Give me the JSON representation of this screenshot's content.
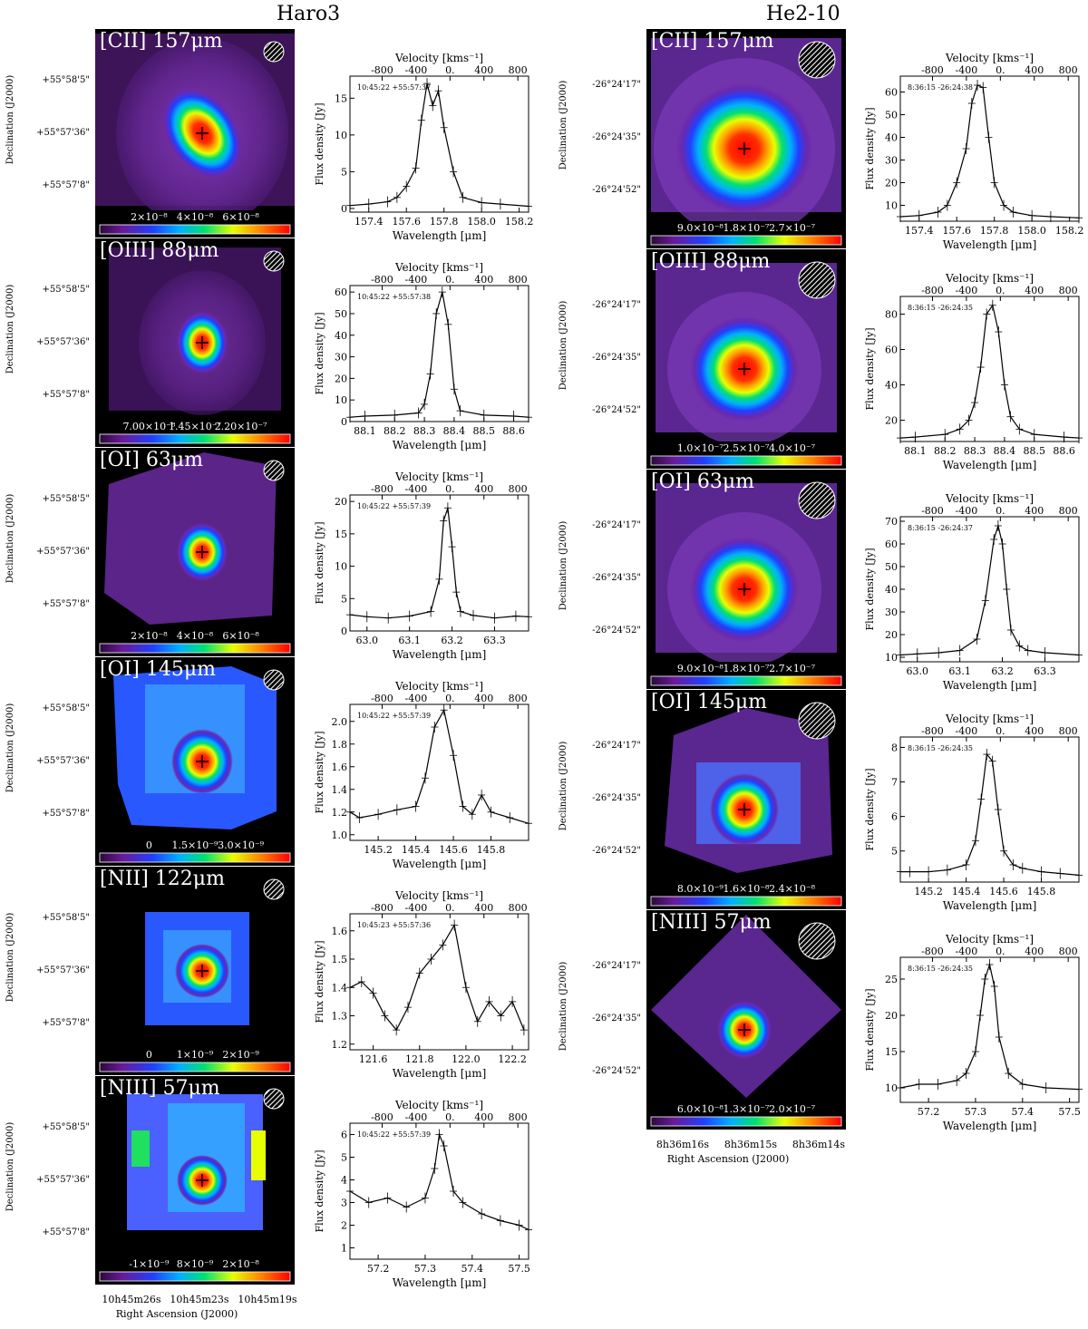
{
  "headers": {
    "left": "Haro3",
    "right": "He2-10"
  },
  "common": {
    "declination_label": "Declination (J2000)",
    "ra_label": "Right Ascension (J2000)",
    "wavelength_label": "Wavelength [μm]",
    "velocity_label": "Velocity [kms⁻¹]",
    "flux_label": "Flux density [Jy]",
    "velocity_ticks": [
      "-800",
      "-400",
      "0.",
      "400",
      "800"
    ]
  },
  "haro3": {
    "dec_ticks": [
      "+55°58'5\"",
      "+55°57'36\"",
      "+55°57'8\""
    ],
    "ra_ticks": [
      "10h45m26s",
      "10h45m23s",
      "10h45m19s"
    ],
    "panels": [
      {
        "line": "[CII] 157μm",
        "cbar_ticks": [
          "2×10⁻⁸",
          "4×10⁻⁸",
          "6×10⁻⁸"
        ],
        "map_style": "ellipse-smooth",
        "spectrum": {
          "coords": "10:45:22 +55:57:37",
          "x": [
            157.3,
            157.4,
            157.5,
            157.55,
            157.6,
            157.65,
            157.68,
            157.71,
            157.74,
            157.77,
            157.8,
            157.85,
            157.9,
            158.0,
            158.1,
            158.25
          ],
          "y": [
            0.4,
            0.6,
            0.9,
            1.5,
            3,
            5.5,
            12,
            17,
            14,
            16,
            11,
            5,
            1.5,
            0.8,
            0.6,
            0.3
          ],
          "xticks": [
            "157.4",
            "157.6",
            "157.8",
            "158.0",
            "158.2"
          ],
          "xtick_vals": [
            157.4,
            157.6,
            157.8,
            158.0,
            158.2
          ],
          "yticks": [
            "0",
            "5",
            "10",
            "15"
          ],
          "ytick_vals": [
            0,
            5,
            10,
            15
          ],
          "xlim": [
            157.3,
            158.25
          ],
          "ylim": [
            -0.5,
            18
          ]
        }
      },
      {
        "line": "[OIII] 88μm",
        "cbar_ticks": [
          "7.00×10⁻⁸",
          "1.45×10⁻⁷",
          "2.20×10⁻⁷"
        ],
        "map_style": "compact",
        "spectrum": {
          "coords": "10:45:22 +55:57:38",
          "x": [
            88.05,
            88.1,
            88.2,
            88.28,
            88.3,
            88.32,
            88.34,
            88.36,
            88.38,
            88.4,
            88.42,
            88.5,
            88.6,
            88.65
          ],
          "y": [
            2,
            2.5,
            3,
            4,
            8,
            22,
            50,
            60,
            45,
            15,
            5,
            3,
            2.5,
            2
          ],
          "xticks": [
            "88.1",
            "88.2",
            "88.3",
            "88.4",
            "88.5",
            "88.6"
          ],
          "xtick_vals": [
            88.1,
            88.2,
            88.3,
            88.4,
            88.5,
            88.6
          ],
          "yticks": [
            "0",
            "10",
            "20",
            "30",
            "40",
            "50",
            "60"
          ],
          "ytick_vals": [
            0,
            10,
            20,
            30,
            40,
            50,
            60
          ],
          "xlim": [
            88.05,
            88.65
          ],
          "ylim": [
            0,
            63
          ]
        }
      },
      {
        "line": "[OI] 63μm",
        "cbar_ticks": [
          "2×10⁻⁸",
          "4×10⁻⁸",
          "6×10⁻⁸"
        ],
        "map_style": "compact-irregular",
        "spectrum": {
          "coords": "10:45:22 +55:57:39",
          "x": [
            62.96,
            63.0,
            63.05,
            63.1,
            63.15,
            63.17,
            63.18,
            63.19,
            63.2,
            63.21,
            63.22,
            63.25,
            63.3,
            63.35,
            63.38
          ],
          "y": [
            2.5,
            2.2,
            2.0,
            2.3,
            3,
            8,
            17,
            19,
            13,
            6,
            3,
            2.4,
            2.0,
            2.3,
            2.2
          ],
          "xticks": [
            "63.0",
            "63.1",
            "63.2",
            "63.3"
          ],
          "xtick_vals": [
            63.0,
            63.1,
            63.2,
            63.3
          ],
          "yticks": [
            "0",
            "5",
            "10",
            "15",
            "20"
          ],
          "ytick_vals": [
            0,
            5,
            10,
            15,
            20
          ],
          "xlim": [
            62.96,
            63.38
          ],
          "ylim": [
            0,
            21
          ]
        }
      },
      {
        "line": "[OI] 145μm",
        "cbar_ticks": [
          "0",
          "1.5×10⁻⁹",
          "3.0×10⁻⁹"
        ],
        "map_style": "blocky",
        "spectrum": {
          "coords": "10:45:22 +55:57:39",
          "x": [
            145.05,
            145.1,
            145.2,
            145.3,
            145.4,
            145.45,
            145.5,
            145.55,
            145.6,
            145.65,
            145.7,
            145.75,
            145.8,
            145.9,
            146.0
          ],
          "y": [
            1.2,
            1.15,
            1.18,
            1.22,
            1.25,
            1.5,
            1.95,
            2.1,
            1.7,
            1.25,
            1.18,
            1.35,
            1.2,
            1.15,
            1.1
          ],
          "xticks": [
            "145.2",
            "145.4",
            "145.6",
            "145.8"
          ],
          "xtick_vals": [
            145.2,
            145.4,
            145.6,
            145.8
          ],
          "yticks": [
            "1.0",
            "1.2",
            "1.4",
            "1.6",
            "1.8",
            "2.0"
          ],
          "ytick_vals": [
            1.0,
            1.2,
            1.4,
            1.6,
            1.8,
            2.0
          ],
          "xlim": [
            145.05,
            146.0
          ],
          "ylim": [
            0.95,
            2.15
          ]
        }
      },
      {
        "line": "[NII] 122μm",
        "cbar_ticks": [
          "0",
          "1×10⁻⁹",
          "2×10⁻⁹"
        ],
        "map_style": "blocky-small",
        "spectrum": {
          "coords": "10:45:23 +55:57:36",
          "x": [
            121.5,
            121.55,
            121.6,
            121.65,
            121.7,
            121.75,
            121.8,
            121.85,
            121.9,
            121.95,
            122.0,
            122.05,
            122.1,
            122.15,
            122.2,
            122.25
          ],
          "y": [
            1.4,
            1.42,
            1.38,
            1.3,
            1.25,
            1.33,
            1.45,
            1.5,
            1.55,
            1.62,
            1.4,
            1.28,
            1.35,
            1.3,
            1.35,
            1.25
          ],
          "xticks": [
            "121.6",
            "121.8",
            "122.0",
            "122.2"
          ],
          "xtick_vals": [
            121.6,
            121.8,
            122.0,
            122.2
          ],
          "yticks": [
            "1.2",
            "1.3",
            "1.4",
            "1.5",
            "1.6"
          ],
          "ytick_vals": [
            1.2,
            1.3,
            1.4,
            1.5,
            1.6
          ],
          "xlim": [
            121.5,
            122.27
          ],
          "ylim": [
            1.18,
            1.66
          ]
        }
      },
      {
        "line": "[NIII] 57μm",
        "cbar_ticks": [
          "-1×10⁻⁹",
          "8×10⁻⁹",
          "2×10⁻⁸"
        ],
        "map_style": "blocky-noisy",
        "spectrum": {
          "coords": "10:45:22 +55:57:39",
          "x": [
            57.14,
            57.18,
            57.22,
            57.26,
            57.3,
            57.32,
            57.33,
            57.34,
            57.36,
            57.38,
            57.42,
            57.46,
            57.5,
            57.52
          ],
          "y": [
            3.5,
            3.0,
            3.2,
            2.8,
            3.2,
            4.5,
            6,
            5.5,
            3.5,
            3.0,
            2.5,
            2.2,
            2.0,
            1.8
          ],
          "xticks": [
            "57.2",
            "57.3",
            "57.4",
            "57.5"
          ],
          "xtick_vals": [
            57.2,
            57.3,
            57.4,
            57.5
          ],
          "yticks": [
            "1",
            "2",
            "3",
            "4",
            "5",
            "6"
          ],
          "ytick_vals": [
            1,
            2,
            3,
            4,
            5,
            6
          ],
          "xlim": [
            57.14,
            57.52
          ],
          "ylim": [
            0.5,
            6.5
          ]
        }
      }
    ]
  },
  "he210": {
    "dec_ticks": [
      "-26°24'17\"",
      "-26°24'35\"",
      "-26°24'52\""
    ],
    "ra_ticks": [
      "8h36m16s",
      "8h36m15s",
      "8h36m14s"
    ],
    "panels": [
      {
        "line": "[CII] 157μm",
        "cbar_ticks": [
          "9.0×10⁻⁸",
          "1.8×10⁻⁷",
          "2.7×10⁻⁷"
        ],
        "map_style": "round-big",
        "spectrum": {
          "coords": "8:36:15 -26:24:38",
          "x": [
            157.3,
            157.4,
            157.5,
            157.55,
            157.6,
            157.65,
            157.68,
            157.71,
            157.74,
            157.77,
            157.8,
            157.85,
            157.9,
            158.0,
            158.1,
            158.25
          ],
          "y": [
            5,
            5.5,
            7,
            10,
            20,
            35,
            55,
            63,
            62,
            40,
            20,
            10,
            7,
            5.5,
            5,
            4.5
          ],
          "xticks": [
            "157.4",
            "157.6",
            "157.8",
            "158.0",
            "158.2"
          ],
          "xtick_vals": [
            157.4,
            157.6,
            157.8,
            158.0,
            158.2
          ],
          "yticks": [
            "10",
            "20",
            "30",
            "40",
            "50",
            "60"
          ],
          "ytick_vals": [
            10,
            20,
            30,
            40,
            50,
            60
          ],
          "xlim": [
            157.3,
            158.25
          ],
          "ylim": [
            3,
            67
          ]
        }
      },
      {
        "line": "[OIII] 88μm",
        "cbar_ticks": [
          "1.0×10⁻⁷",
          "2.5×10⁻⁷",
          "4.0×10⁻⁷"
        ],
        "map_style": "round",
        "spectrum": {
          "coords": "8:36:15 -26:24:35",
          "x": [
            88.05,
            88.1,
            88.2,
            88.25,
            88.28,
            88.3,
            88.32,
            88.34,
            88.36,
            88.38,
            88.4,
            88.42,
            88.45,
            88.5,
            88.6,
            88.65
          ],
          "y": [
            10,
            10.5,
            12,
            15,
            20,
            30,
            50,
            80,
            85,
            70,
            40,
            22,
            15,
            12,
            10.5,
            10
          ],
          "xticks": [
            "88.1",
            "88.2",
            "88.3",
            "88.4",
            "88.5",
            "88.6"
          ],
          "xtick_vals": [
            88.1,
            88.2,
            88.3,
            88.4,
            88.5,
            88.6
          ],
          "yticks": [
            "20",
            "40",
            "60",
            "80"
          ],
          "ytick_vals": [
            20,
            40,
            60,
            80
          ],
          "xlim": [
            88.05,
            88.65
          ],
          "ylim": [
            8,
            90
          ]
        }
      },
      {
        "line": "[OI] 63μm",
        "cbar_ticks": [
          "9.0×10⁻⁸",
          "1.8×10⁻⁷",
          "2.7×10⁻⁷"
        ],
        "map_style": "round",
        "spectrum": {
          "coords": "8:36:15 -26:24:37",
          "x": [
            62.96,
            63.0,
            63.05,
            63.1,
            63.14,
            63.16,
            63.18,
            63.19,
            63.2,
            63.21,
            63.22,
            63.24,
            63.26,
            63.3,
            63.38
          ],
          "y": [
            11,
            11.5,
            12,
            13,
            18,
            35,
            62,
            68,
            60,
            40,
            22,
            15,
            13,
            12,
            11
          ],
          "xticks": [
            "63.0",
            "63.1",
            "63.2",
            "63.3"
          ],
          "xtick_vals": [
            63.0,
            63.1,
            63.2,
            63.3
          ],
          "yticks": [
            "10",
            "20",
            "30",
            "40",
            "50",
            "60",
            "70"
          ],
          "ytick_vals": [
            10,
            20,
            30,
            40,
            50,
            60,
            70
          ],
          "xlim": [
            62.96,
            63.38
          ],
          "ylim": [
            8,
            72
          ]
        }
      },
      {
        "line": "[OI] 145μm",
        "cbar_ticks": [
          "8.0×10⁻⁹",
          "1.6×10⁻⁸",
          "2.4×10⁻⁸"
        ],
        "map_style": "square-halo",
        "spectrum": {
          "coords": "8:36:15 -26:24:35",
          "x": [
            145.05,
            145.1,
            145.2,
            145.3,
            145.4,
            145.45,
            145.48,
            145.51,
            145.54,
            145.57,
            145.6,
            145.65,
            145.7,
            145.8,
            145.9,
            146.0
          ],
          "y": [
            4.4,
            4.4,
            4.4,
            4.45,
            4.6,
            5.3,
            6.5,
            7.8,
            7.6,
            6.2,
            5.0,
            4.6,
            4.5,
            4.4,
            4.35,
            4.3
          ],
          "xticks": [
            "145.2",
            "145.4",
            "145.6",
            "145.8"
          ],
          "xtick_vals": [
            145.2,
            145.4,
            145.6,
            145.8
          ],
          "yticks": [
            "5",
            "6",
            "7",
            "8"
          ],
          "ytick_vals": [
            5,
            6,
            7,
            8
          ],
          "xlim": [
            145.05,
            146.0
          ],
          "ylim": [
            4.1,
            8.3
          ]
        }
      },
      {
        "line": "[NIII] 57μm",
        "cbar_ticks": [
          "6.0×10⁻⁸",
          "1.3×10⁻⁷",
          "2.0×10⁻⁷"
        ],
        "map_style": "diamond",
        "spectrum": {
          "coords": "8:36:15 -26:24:35",
          "x": [
            57.14,
            57.18,
            57.22,
            57.26,
            57.28,
            57.3,
            57.31,
            57.32,
            57.33,
            57.34,
            57.35,
            57.37,
            57.4,
            57.45,
            57.52
          ],
          "y": [
            10,
            10.5,
            10.5,
            11,
            12,
            15,
            20,
            25,
            27,
            24,
            17,
            12,
            10.5,
            10,
            9.8
          ],
          "xticks": [
            "57.2",
            "57.3",
            "57.4",
            "57.5"
          ],
          "xtick_vals": [
            57.2,
            57.3,
            57.4,
            57.5
          ],
          "yticks": [
            "10",
            "15",
            "20",
            "25"
          ],
          "ytick_vals": [
            10,
            15,
            20,
            25
          ],
          "xlim": [
            57.14,
            57.52
          ],
          "ylim": [
            8,
            28
          ]
        }
      }
    ]
  }
}
